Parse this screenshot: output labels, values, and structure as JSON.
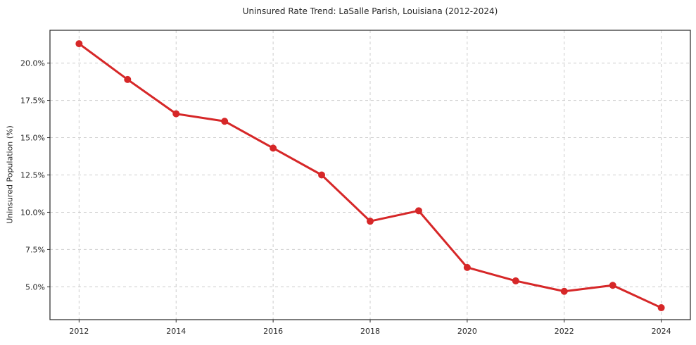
{
  "figure": {
    "background": "#ffffff"
  },
  "chart_data": {
    "type": "line",
    "title": "Uninsured Rate Trend: LaSalle Parish, Louisiana (2012-2024)",
    "xlabel": "",
    "ylabel": "Uninsured Population (%)",
    "x": [
      2012,
      2013,
      2014,
      2015,
      2016,
      2017,
      2018,
      2019,
      2020,
      2021,
      2022,
      2023,
      2024
    ],
    "values": [
      21.3,
      18.9,
      16.6,
      16.1,
      14.3,
      12.5,
      9.4,
      10.1,
      6.3,
      5.4,
      4.7,
      5.1,
      3.6
    ],
    "series_name": "Uninsured rate",
    "xlim": [
      2011.4,
      2024.6
    ],
    "ylim": [
      2.8,
      22.2
    ],
    "xticks": [
      2012,
      2014,
      2016,
      2018,
      2020,
      2022,
      2024
    ],
    "xtick_labels": [
      "2012",
      "2014",
      "2016",
      "2018",
      "2020",
      "2022",
      "2024"
    ],
    "yticks": [
      5.0,
      7.5,
      10.0,
      12.5,
      15.0,
      17.5,
      20.0
    ],
    "ytick_labels": [
      "5.0%",
      "7.5%",
      "10.0%",
      "12.5%",
      "15.0%",
      "17.5%",
      "20.0%"
    ],
    "grid": true,
    "legend": null,
    "line_color": "#d62728",
    "marker_color": "#d62728",
    "grid_color": "#cccccc",
    "spine_color": "#262626",
    "text_color": "#262626"
  }
}
